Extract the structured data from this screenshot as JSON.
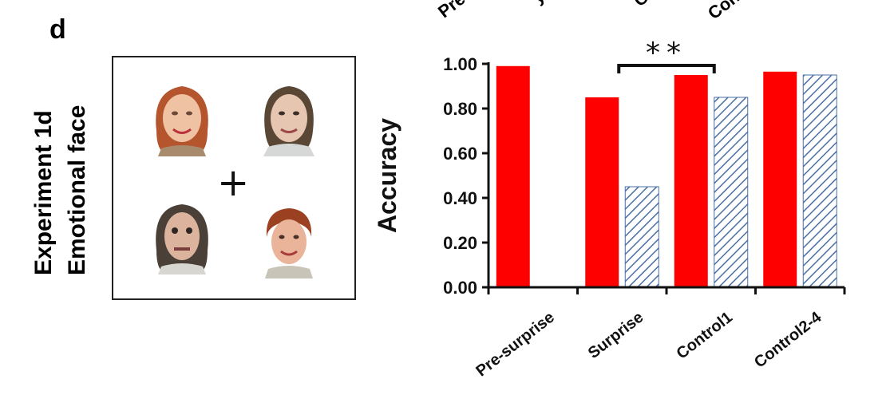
{
  "panel": {
    "letter": "d",
    "experiment_label": "Experiment 1d",
    "condition_label": "Emotional face"
  },
  "top_partial_labels": [
    "Pre-s",
    "y",
    "Co",
    "Cont"
  ],
  "stimulus": {
    "fixation": "+",
    "faces": [
      "face-top-left",
      "face-top-right",
      "face-bottom-left",
      "face-bottom-right"
    ]
  },
  "colors": {
    "solid": "#ff0000",
    "hatched": "#4a6fa5"
  },
  "chart_data": {
    "type": "bar",
    "ylabel": "Accuracy",
    "ylim": [
      0,
      1.0
    ],
    "yticks": [
      "0.00",
      "0.20",
      "0.40",
      "0.60",
      "0.80",
      "1.00"
    ],
    "categories": [
      "Pre-surprise",
      "Surprise",
      "Control1",
      "Control2-4"
    ],
    "series": [
      {
        "style": "solid",
        "values": [
          0.99,
          0.85,
          0.95,
          0.965
        ]
      },
      {
        "style": "hatched",
        "values": [
          null,
          0.45,
          0.85,
          0.95
        ]
      }
    ],
    "annotation": {
      "text": "**",
      "from_category": 1,
      "to_category": 2
    }
  }
}
